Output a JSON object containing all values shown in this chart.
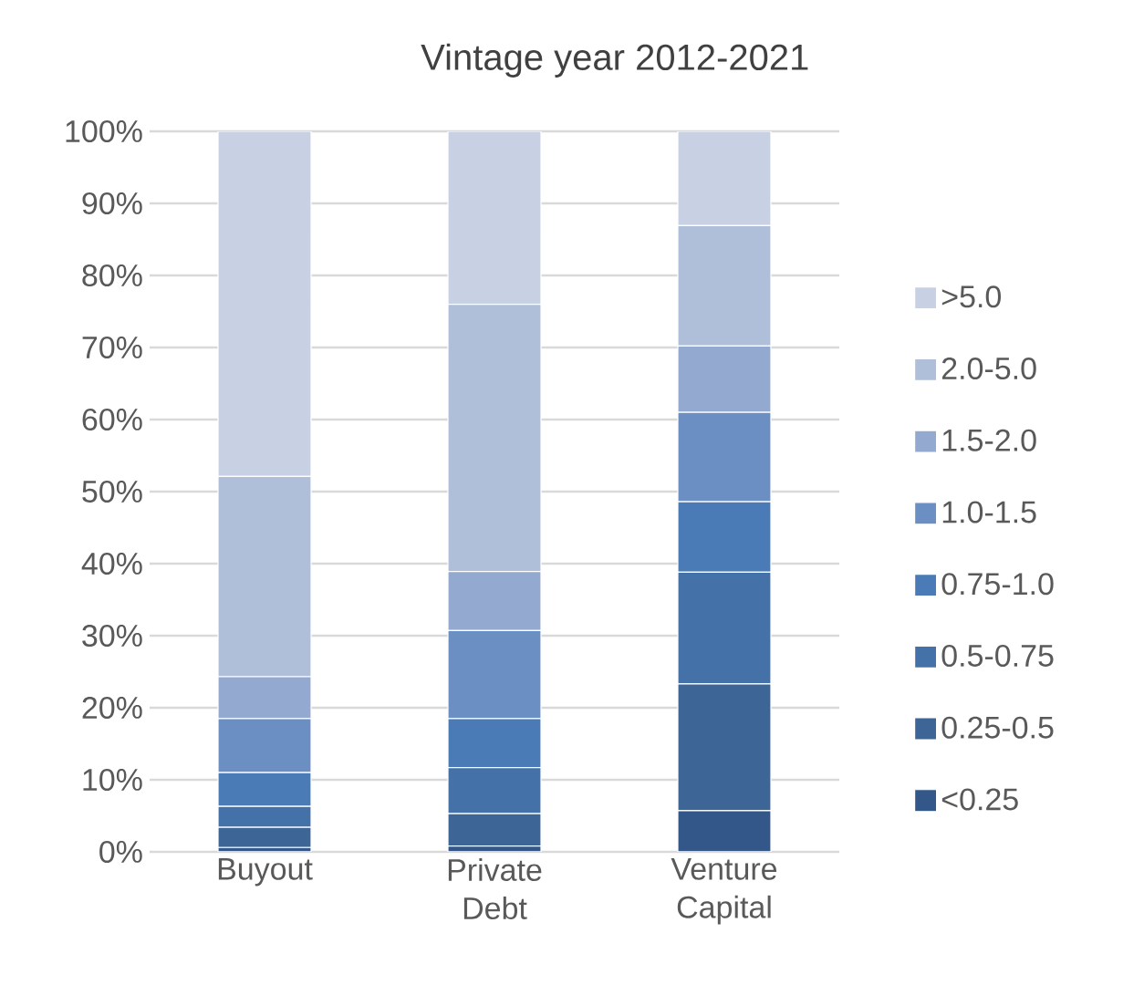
{
  "chart_data": {
    "type": "bar",
    "stacked": true,
    "title": "Vintage year 2012-2021",
    "categories": [
      "Buyout",
      "Private Debt",
      "Venture Capital"
    ],
    "series": [
      {
        "name": "<0.25",
        "color": "#34578a",
        "values": [
          0.6,
          0.8,
          5.7
        ]
      },
      {
        "name": "0.25-0.5",
        "color": "#3d6596",
        "values": [
          2.8,
          4.5,
          17.6
        ]
      },
      {
        "name": "0.5-0.75",
        "color": "#4472a8",
        "values": [
          2.9,
          6.4,
          15.5
        ]
      },
      {
        "name": "0.75-1.0",
        "color": "#4a7bb6",
        "values": [
          4.7,
          6.8,
          9.8
        ]
      },
      {
        "name": "1.0-1.5",
        "color": "#6b8fc3",
        "values": [
          7.5,
          12.2,
          12.4
        ]
      },
      {
        "name": "1.5-2.0",
        "color": "#93a9d0",
        "values": [
          5.8,
          8.2,
          9.2
        ]
      },
      {
        "name": "2.0-5.0",
        "color": "#afbfd9",
        "values": [
          27.8,
          37.1,
          16.7
        ]
      },
      {
        "name": ">5.0",
        "color": "#c8d1e4",
        "values": [
          47.9,
          24.0,
          13.1
        ]
      }
    ],
    "ylim": [
      0,
      100
    ],
    "yticks": [
      {
        "value": 0,
        "label": "0%"
      },
      {
        "value": 10,
        "label": "10%"
      },
      {
        "value": 20,
        "label": "20%"
      },
      {
        "value": 30,
        "label": "30%"
      },
      {
        "value": 40,
        "label": "40%"
      },
      {
        "value": 50,
        "label": "50%"
      },
      {
        "value": 60,
        "label": "60%"
      },
      {
        "value": 70,
        "label": "70%"
      },
      {
        "value": 80,
        "label": "80%"
      },
      {
        "value": 90,
        "label": "90%"
      },
      {
        "value": 100,
        "label": "100%"
      }
    ],
    "grid": "y",
    "legend": "right"
  }
}
